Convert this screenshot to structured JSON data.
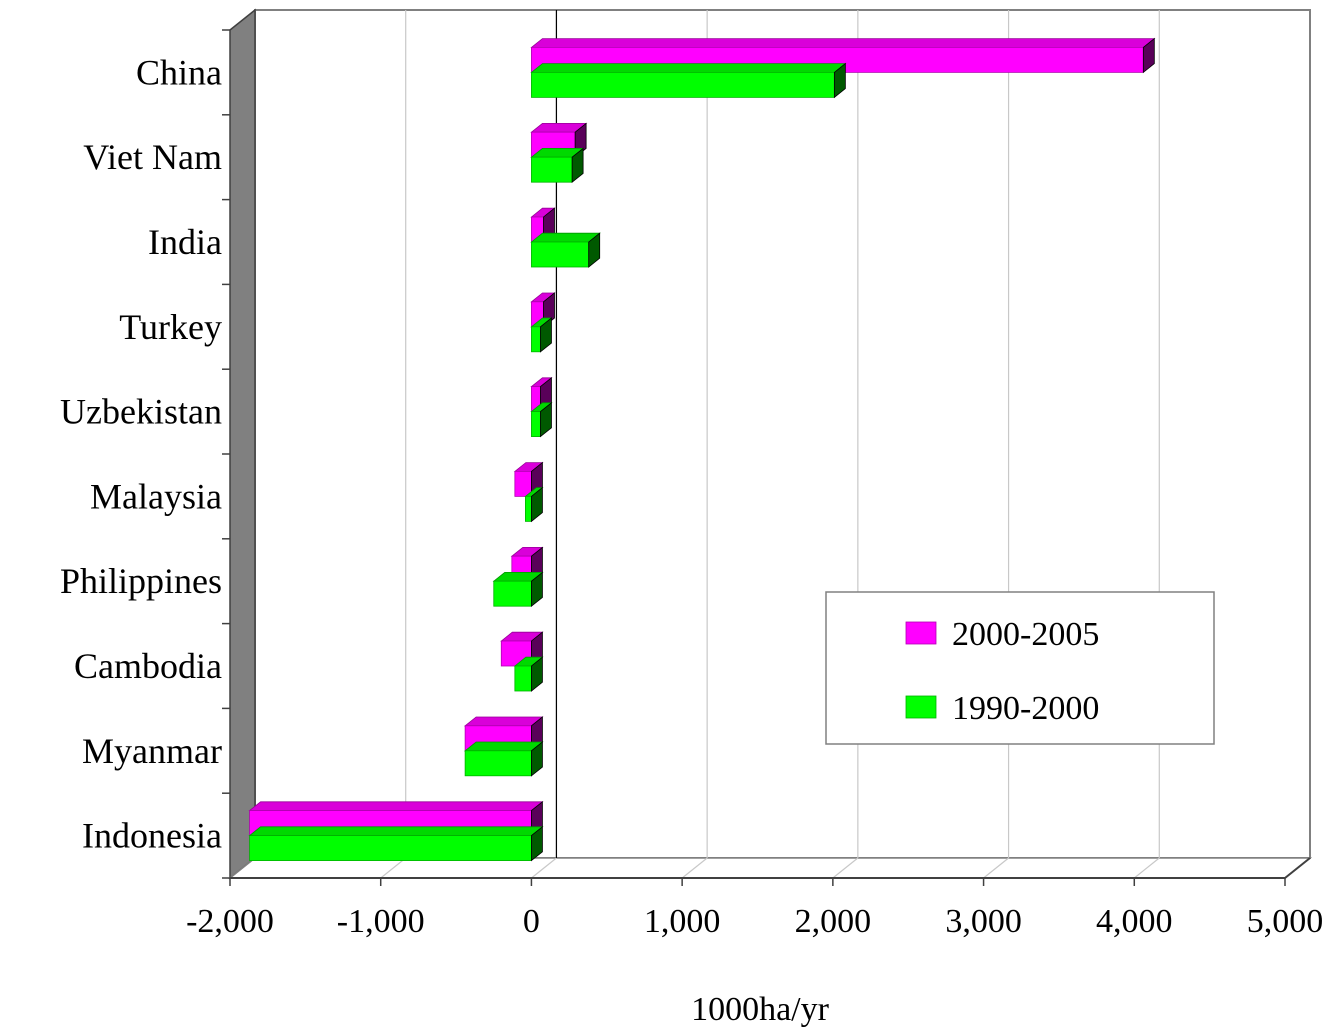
{
  "chart_data": {
    "type": "bar",
    "orientation": "horizontal",
    "style": "3d",
    "categories": [
      "China",
      "Viet Nam",
      "India",
      "Turkey",
      "Uzbekistan",
      "Malaysia",
      "Philippines",
      "Cambodia",
      "Myanmar",
      "Indonesia"
    ],
    "series": [
      {
        "name": "2000-2005",
        "color": "#ff00ff",
        "values": [
          4060,
          290,
          80,
          80,
          60,
          -110,
          -130,
          -200,
          -440,
          -1870
        ]
      },
      {
        "name": "1990-2000",
        "color": "#00ff00",
        "values": [
          2010,
          270,
          380,
          60,
          60,
          -40,
          -250,
          -110,
          -440,
          -1870
        ]
      }
    ],
    "xlabel": "1000ha/yr",
    "xlim": [
      -2000,
      5000
    ],
    "xticks": [
      -2000,
      -1000,
      0,
      1000,
      2000,
      3000,
      4000,
      5000
    ],
    "xtick_labels": [
      "-2,000",
      "-1,000",
      "0",
      "1,000",
      "2,000",
      "3,000",
      "4,000",
      "5,000"
    ],
    "grid": true,
    "legend_position": "lower-right"
  }
}
